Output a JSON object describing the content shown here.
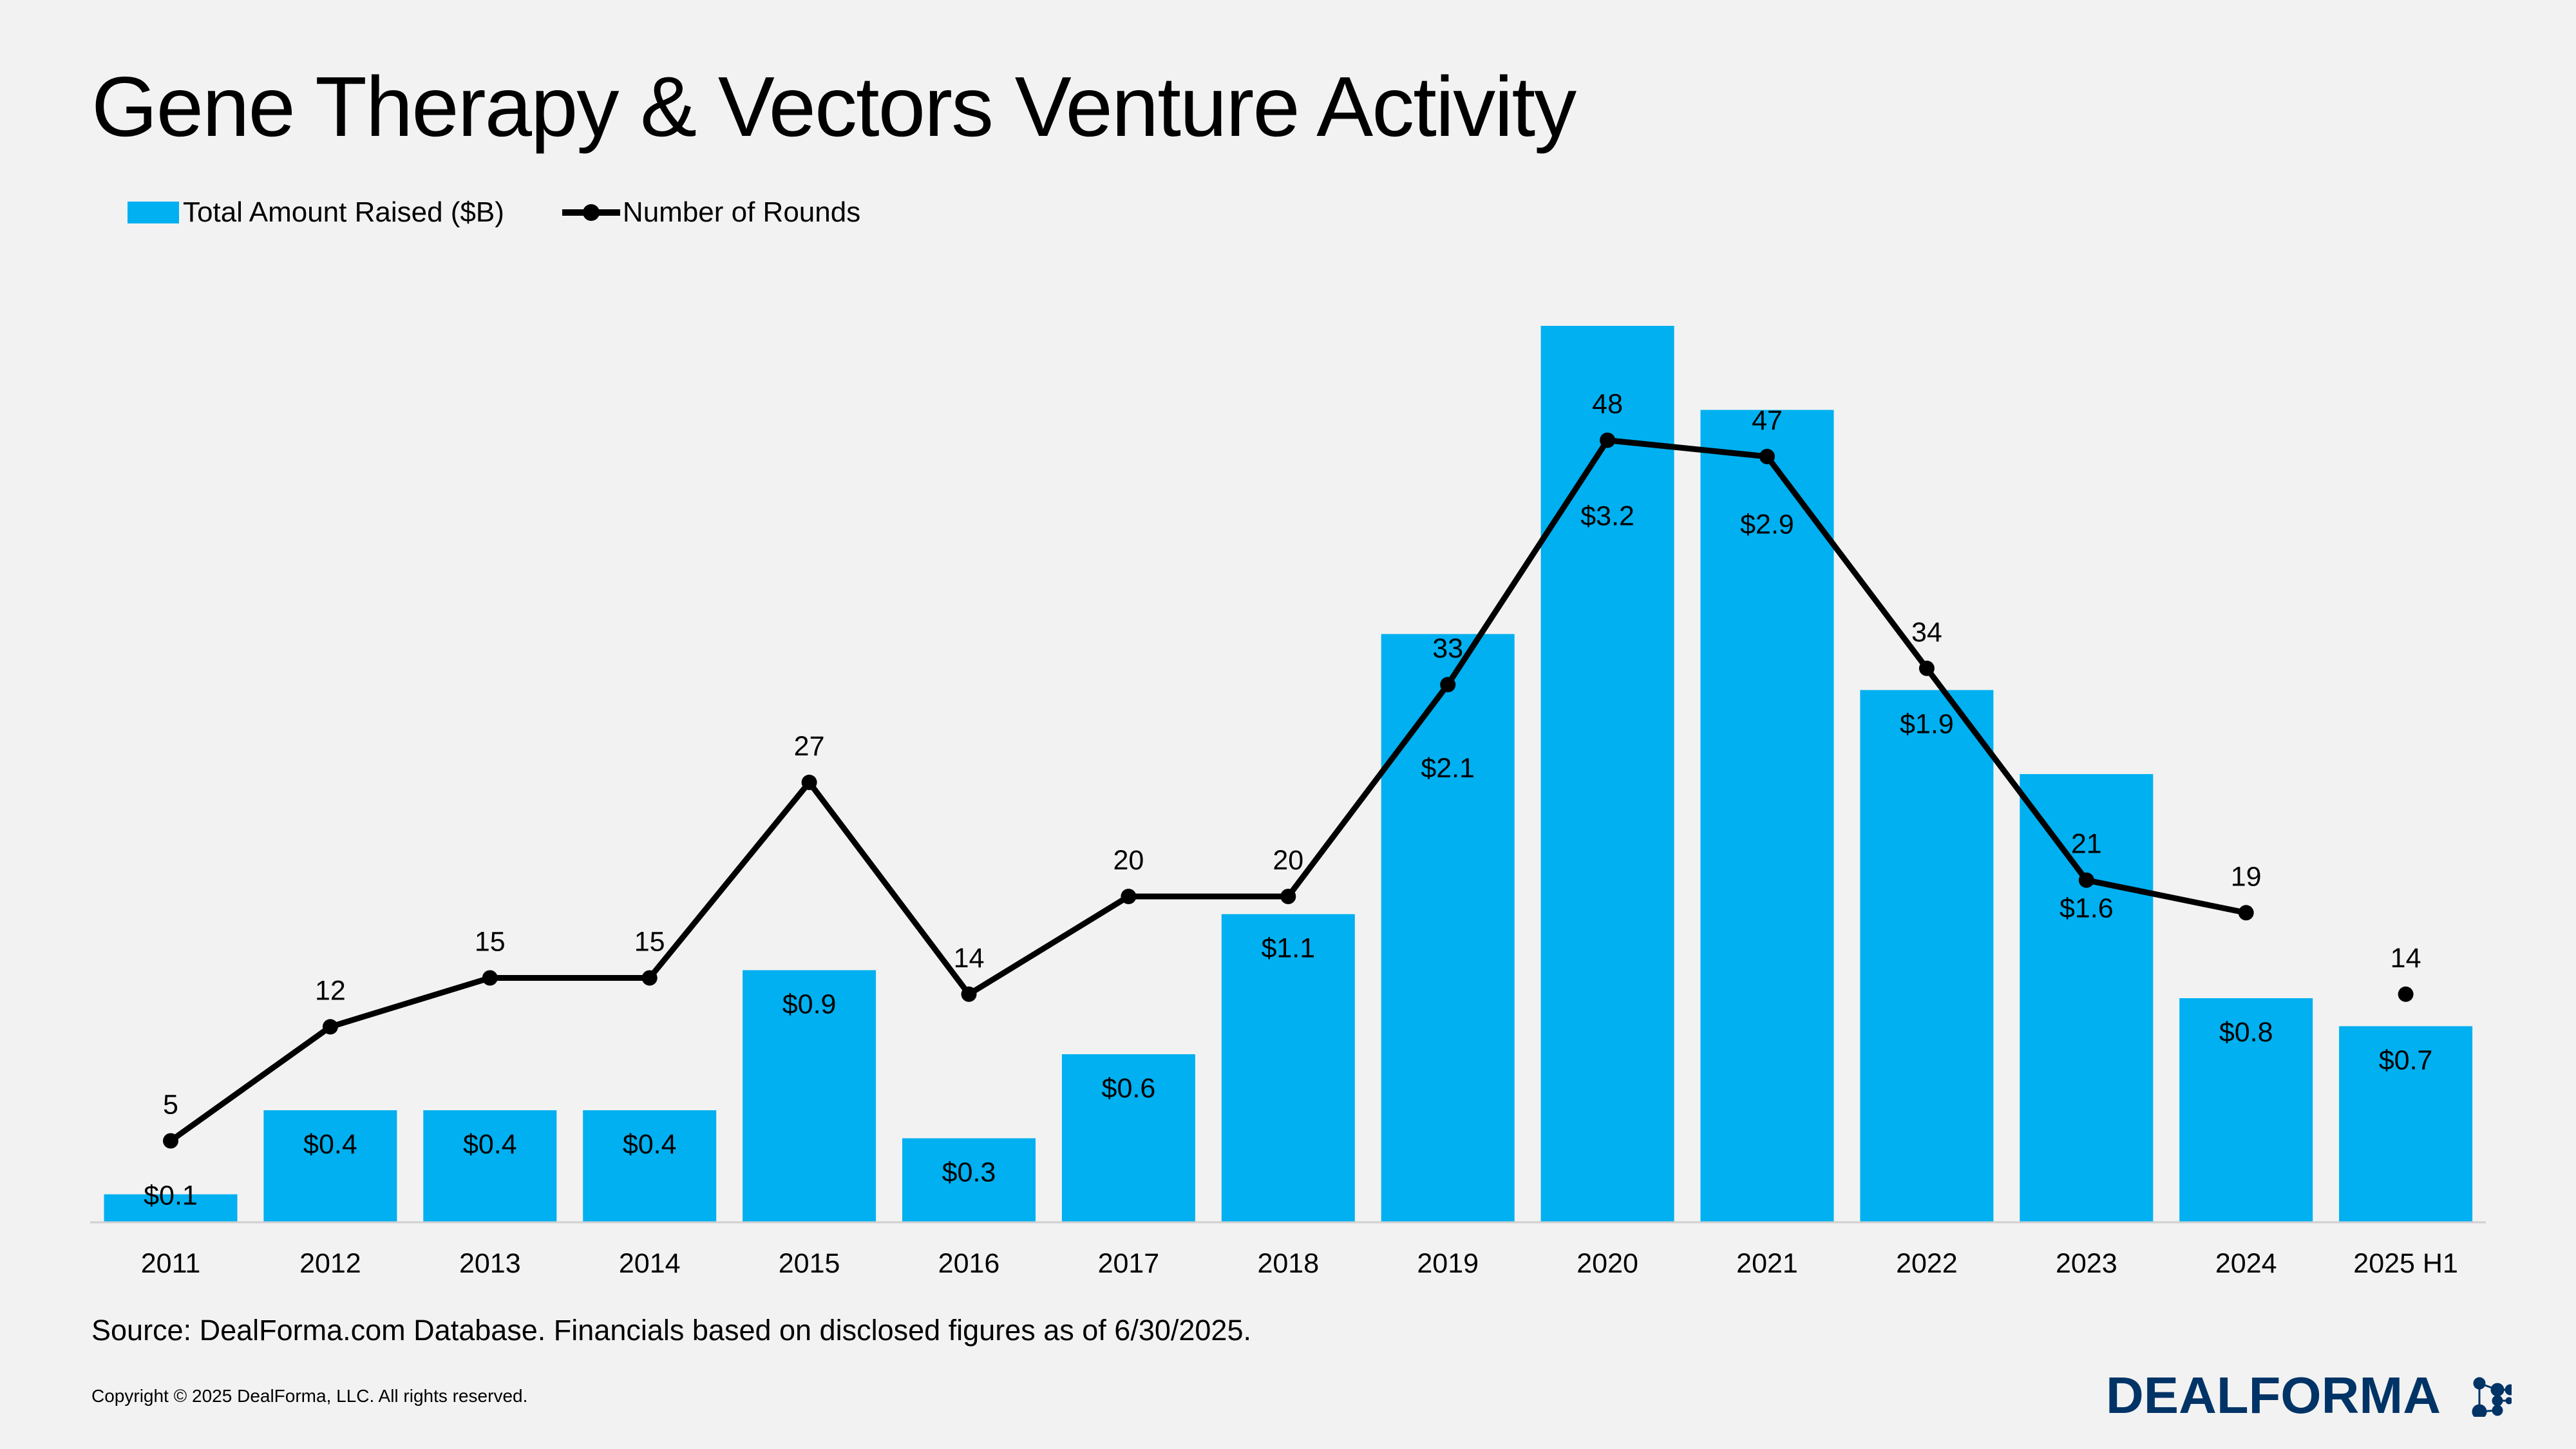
{
  "chart_data": {
    "type": "bar+line",
    "title": "Gene Therapy & Vectors Venture Activity",
    "categories": [
      "2011",
      "2012",
      "2013",
      "2014",
      "2015",
      "2016",
      "2017",
      "2018",
      "2019",
      "2020",
      "2021",
      "2022",
      "2023",
      "2024",
      "2025 H1"
    ],
    "series": [
      {
        "name": "Total Amount Raised ($B)",
        "type": "bar",
        "color": "#00b0f0",
        "values": [
          0.1,
          0.4,
          0.4,
          0.4,
          0.9,
          0.3,
          0.6,
          1.1,
          2.1,
          3.2,
          2.9,
          1.9,
          1.6,
          0.8,
          0.7
        ],
        "labels": [
          "$0.1",
          "$0.4",
          "$0.4",
          "$0.4",
          "$0.9",
          "$0.3",
          "$0.6",
          "$1.1",
          "$2.1",
          "$3.2",
          "$2.9",
          "$1.9",
          "$1.6",
          "$0.8",
          "$0.7"
        ]
      },
      {
        "name": "Number of Rounds",
        "type": "line",
        "color": "#000000",
        "values": [
          5,
          12,
          15,
          15,
          27,
          14,
          20,
          20,
          33,
          48,
          47,
          34,
          21,
          19,
          14
        ],
        "labels": [
          "5",
          "12",
          "15",
          "15",
          "27",
          "14",
          "20",
          "20",
          "33",
          "48",
          "47",
          "34",
          "21",
          "19",
          "14"
        ]
      }
    ],
    "legend_position": "top-left",
    "grid": false
  },
  "source": "Source: DealForma.com Database. Financials based on disclosed figures as of 6/30/2025.",
  "copyright": "Copyright © 2025 DealForma, LLC. All rights reserved.",
  "logo_text": "DEALFORMA",
  "colors": {
    "bar": "#00b0f0",
    "line": "#000000",
    "logo": "#003366",
    "background": "#f2f2f2"
  }
}
